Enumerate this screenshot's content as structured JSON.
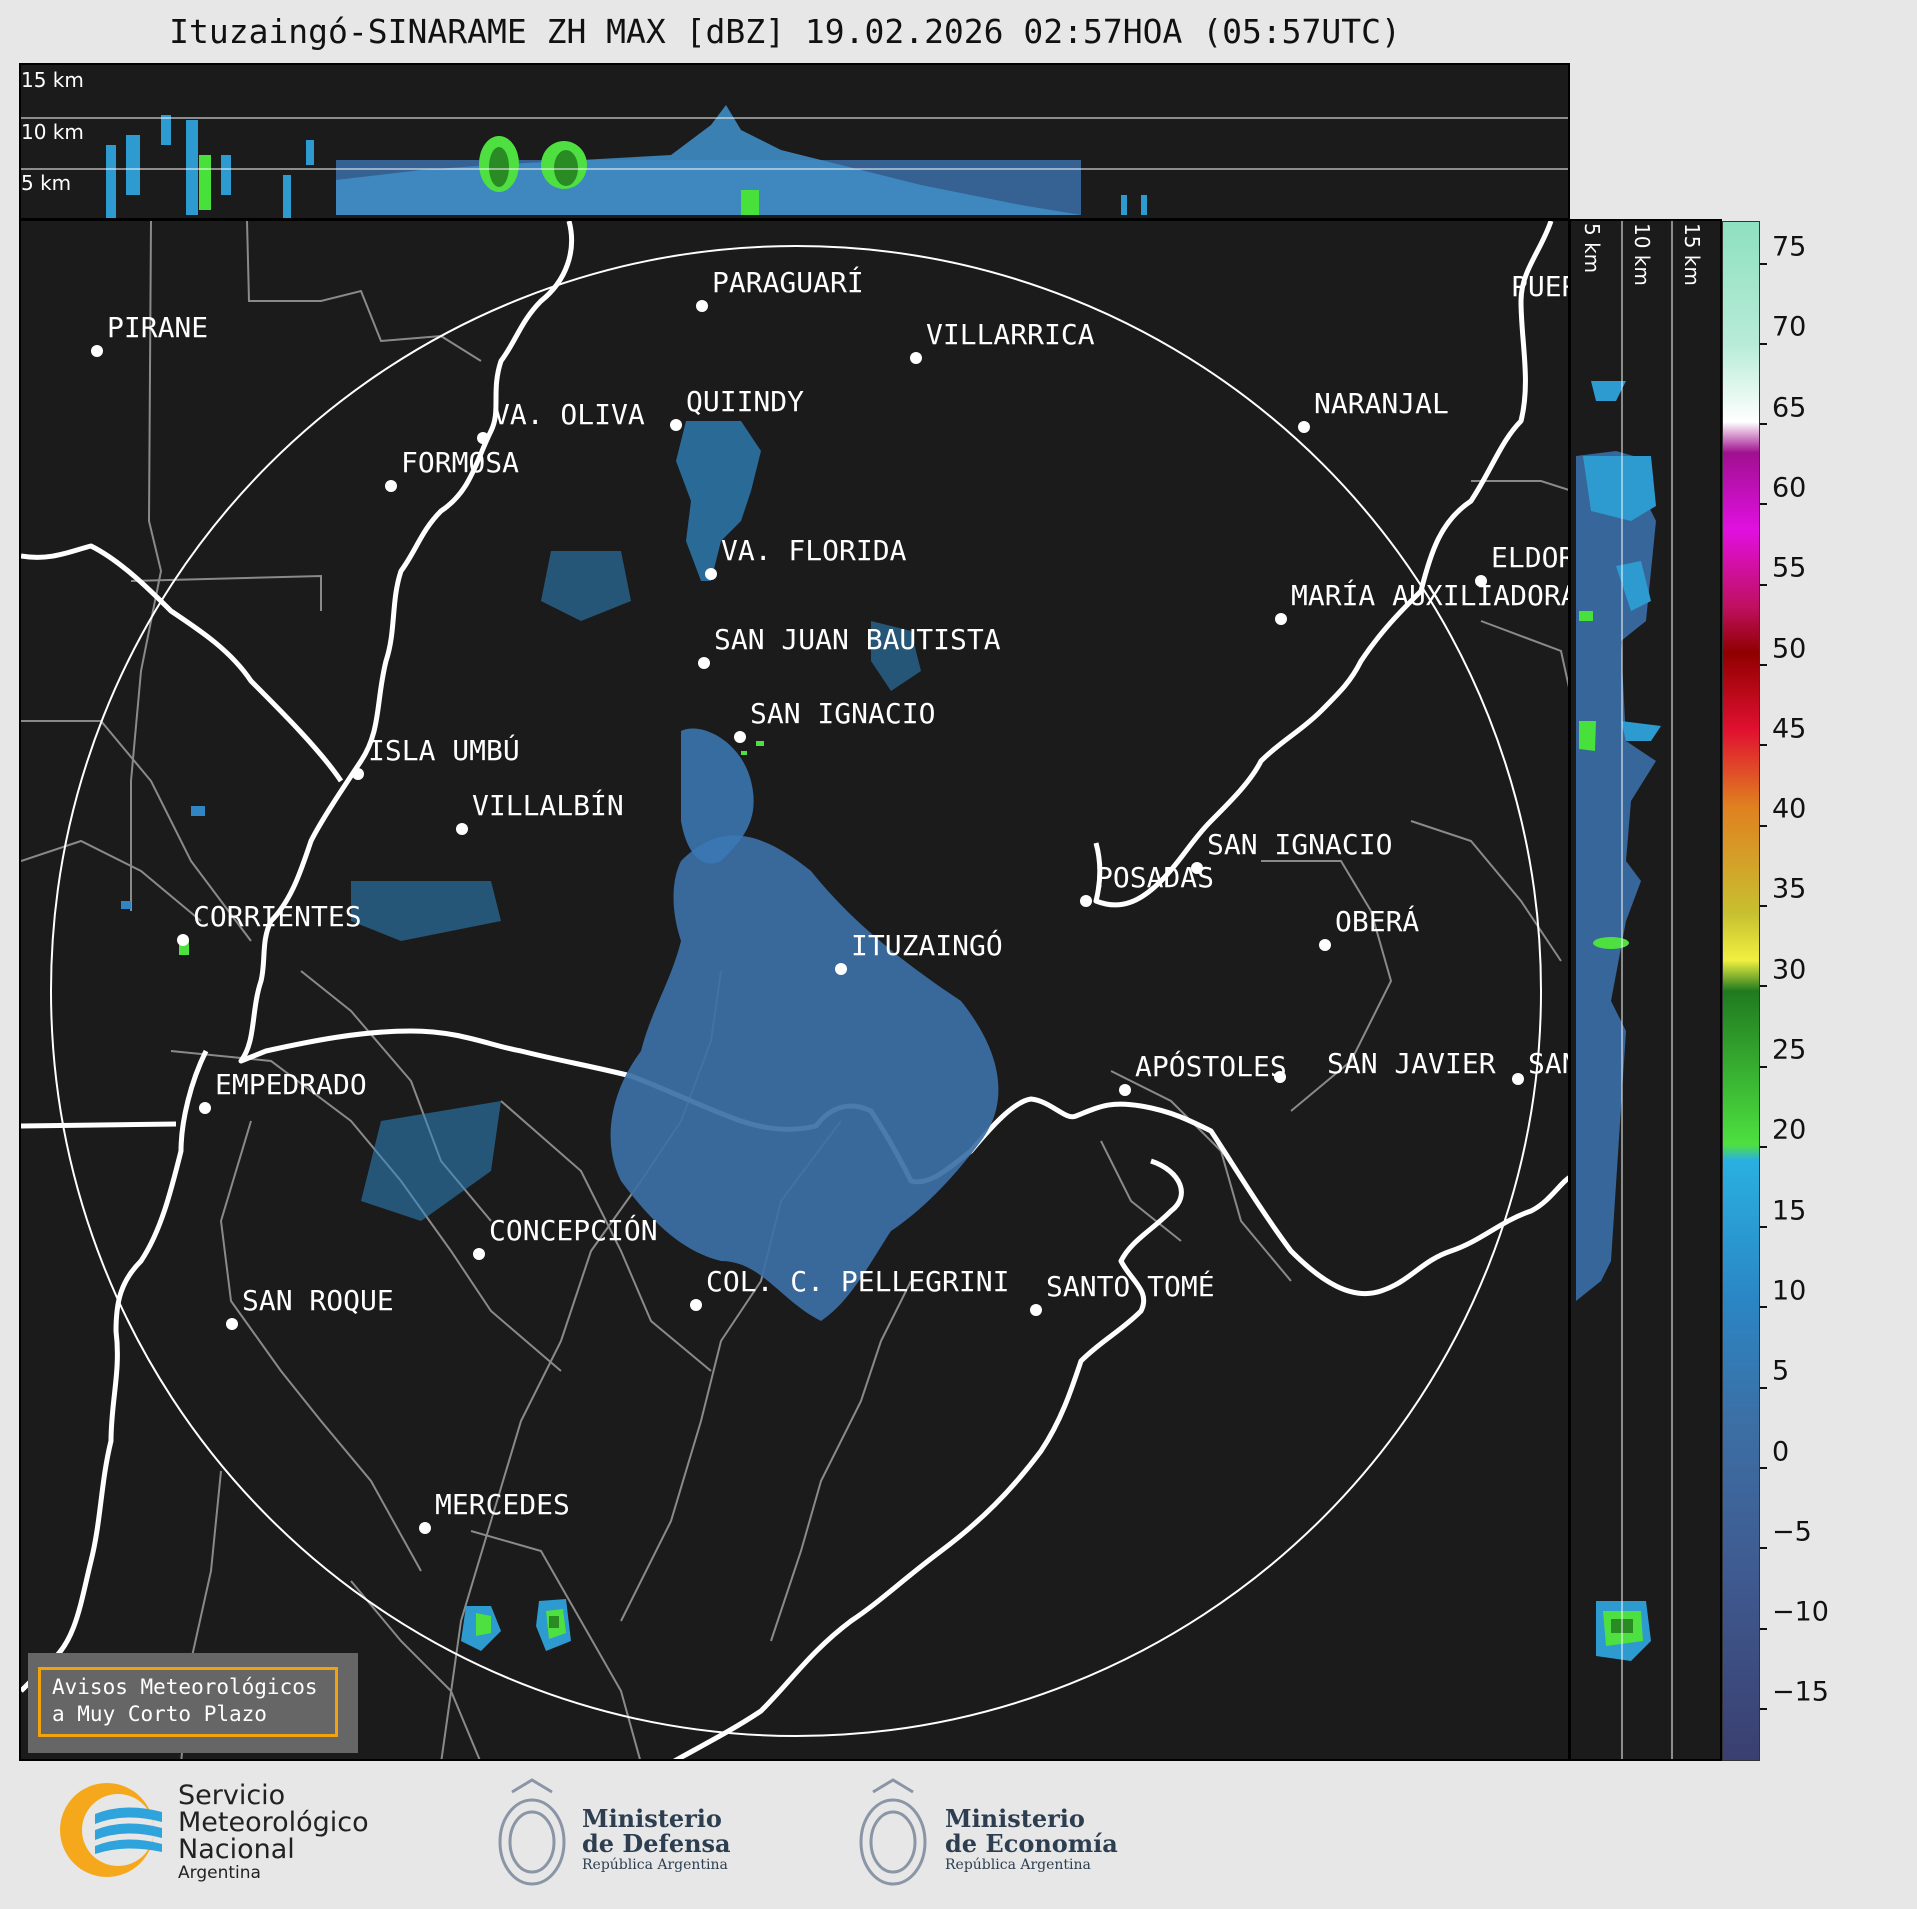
{
  "title": "Ituzaingó-SINARAME ZH MAX [dBZ] 19.02.2026 02:57HOA (05:57UTC)",
  "top_panel": {
    "height_labels": [
      "15 km",
      "10 km",
      "5 km"
    ]
  },
  "right_panel": {
    "height_labels": [
      "5 km",
      "10 km",
      "15 km"
    ]
  },
  "colorbar": {
    "unit": "dBZ",
    "ticks": [
      "75",
      "70",
      "65",
      "60",
      "55",
      "50",
      "45",
      "40",
      "35",
      "30",
      "25",
      "20",
      "15",
      "10",
      "5",
      "0",
      "−5",
      "−10",
      "−15"
    ]
  },
  "cities": [
    {
      "name": "PARAGUARÍ"
    },
    {
      "name": "VILLARRICA"
    },
    {
      "name": "PIRANE"
    },
    {
      "name": "QUIINDY"
    },
    {
      "name": "VA. OLIVA"
    },
    {
      "name": "NARANJAL"
    },
    {
      "name": "FORMOSA"
    },
    {
      "name": "VA. FLORIDA"
    },
    {
      "name": "ELDORADO"
    },
    {
      "name": "MARÍA AUXILIADORA"
    },
    {
      "name": "SAN JUAN BAUTISTA"
    },
    {
      "name": "SAN IGNACIO"
    },
    {
      "name": "ISLA UMBÚ"
    },
    {
      "name": "VILLALBÍN"
    },
    {
      "name": "SAN IGNACIO"
    },
    {
      "name": "POSADAS"
    },
    {
      "name": "CORRIENTES"
    },
    {
      "name": "ITUZAINGÓ"
    },
    {
      "name": "OBERÁ"
    },
    {
      "name": "APÓSTOLES"
    },
    {
      "name": "SAN JAVIER"
    },
    {
      "name": "SAN"
    },
    {
      "name": "EMPEDRADO"
    },
    {
      "name": "CONCEPCIÓN"
    },
    {
      "name": "COL. C. PELLEGRINI"
    },
    {
      "name": "SANTO TOMÉ"
    },
    {
      "name": "SAN ROQUE"
    },
    {
      "name": "MERCEDES"
    },
    {
      "name": "PUERTO"
    }
  ],
  "warning": {
    "line1": "Avisos Meteorológicos",
    "line2": "a Muy Corto Plazo"
  },
  "logos": {
    "smn": [
      "Servicio",
      "Meteorológico",
      "Nacional",
      "Argentina"
    ],
    "defensa": [
      "Ministerio",
      "de Defensa",
      "República Argentina"
    ],
    "economia": [
      "Ministerio",
      "de Economía",
      "República Argentina"
    ]
  }
}
